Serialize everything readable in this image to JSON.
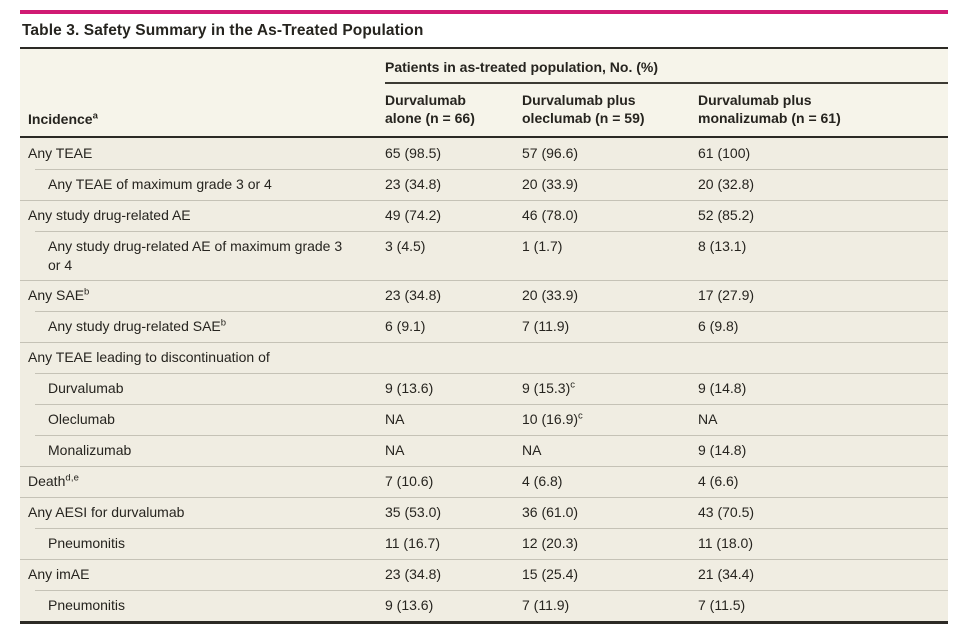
{
  "table": {
    "title": "Table 3. Safety Summary in the As-Treated Population",
    "spanner": "Patients in as-treated population, No. (%)",
    "row_header": {
      "label": "Incidence",
      "superscript": "a"
    },
    "columns": [
      {
        "line1": "Durvalumab",
        "line2": "alone (n = 66)"
      },
      {
        "line1": "Durvalumab plus",
        "line2": "oleclumab (n = 59)"
      },
      {
        "line1": "Durvalumab plus",
        "line2": "monalizumab (n = 61)"
      }
    ],
    "rows": [
      {
        "indent": false,
        "label": {
          "text": "Any TEAE",
          "sup": ""
        },
        "values": [
          {
            "text": "65 (98.5)",
            "sup": ""
          },
          {
            "text": "57 (96.6)",
            "sup": ""
          },
          {
            "text": "61 (100)",
            "sup": ""
          }
        ]
      },
      {
        "indent": true,
        "label": {
          "text": "Any TEAE of maximum grade 3 or 4",
          "sup": ""
        },
        "values": [
          {
            "text": "23 (34.8)",
            "sup": ""
          },
          {
            "text": "20 (33.9)",
            "sup": ""
          },
          {
            "text": "20 (32.8)",
            "sup": ""
          }
        ]
      },
      {
        "indent": false,
        "label": {
          "text": "Any study drug-related AE",
          "sup": ""
        },
        "values": [
          {
            "text": "49 (74.2)",
            "sup": ""
          },
          {
            "text": "46 (78.0)",
            "sup": ""
          },
          {
            "text": "52 (85.2)",
            "sup": ""
          }
        ]
      },
      {
        "indent": true,
        "label": {
          "text": "Any study drug-related AE of maximum grade 3 or 4",
          "sup": ""
        },
        "values": [
          {
            "text": "3 (4.5)",
            "sup": ""
          },
          {
            "text": "1 (1.7)",
            "sup": ""
          },
          {
            "text": "8 (13.1)",
            "sup": ""
          }
        ]
      },
      {
        "indent": false,
        "label": {
          "text": "Any SAE",
          "sup": "b"
        },
        "values": [
          {
            "text": "23 (34.8)",
            "sup": ""
          },
          {
            "text": "20 (33.9)",
            "sup": ""
          },
          {
            "text": "17 (27.9)",
            "sup": ""
          }
        ]
      },
      {
        "indent": true,
        "label": {
          "text": "Any study drug-related SAE",
          "sup": "b"
        },
        "values": [
          {
            "text": "6 (9.1)",
            "sup": ""
          },
          {
            "text": "7 (11.9)",
            "sup": ""
          },
          {
            "text": "6 (9.8)",
            "sup": ""
          }
        ]
      },
      {
        "indent": false,
        "label": {
          "text": "Any TEAE leading to discontinuation of",
          "sup": ""
        },
        "values": [
          {
            "text": "",
            "sup": ""
          },
          {
            "text": "",
            "sup": ""
          },
          {
            "text": "",
            "sup": ""
          }
        ]
      },
      {
        "indent": true,
        "label": {
          "text": "Durvalumab",
          "sup": ""
        },
        "values": [
          {
            "text": "9 (13.6)",
            "sup": ""
          },
          {
            "text": "9 (15.3)",
            "sup": "c"
          },
          {
            "text": "9 (14.8)",
            "sup": ""
          }
        ]
      },
      {
        "indent": true,
        "label": {
          "text": "Oleclumab",
          "sup": ""
        },
        "values": [
          {
            "text": "NA",
            "sup": ""
          },
          {
            "text": "10 (16.9)",
            "sup": "c"
          },
          {
            "text": "NA",
            "sup": ""
          }
        ]
      },
      {
        "indent": true,
        "label": {
          "text": "Monalizumab",
          "sup": ""
        },
        "values": [
          {
            "text": "NA",
            "sup": ""
          },
          {
            "text": "NA",
            "sup": ""
          },
          {
            "text": "9 (14.8)",
            "sup": ""
          }
        ]
      },
      {
        "indent": false,
        "label": {
          "text": "Death",
          "sup": "d,e"
        },
        "values": [
          {
            "text": "7 (10.6)",
            "sup": ""
          },
          {
            "text": "4 (6.8)",
            "sup": ""
          },
          {
            "text": "4 (6.6)",
            "sup": ""
          }
        ]
      },
      {
        "indent": false,
        "label": {
          "text": "Any AESI for durvalumab",
          "sup": ""
        },
        "values": [
          {
            "text": "35 (53.0)",
            "sup": ""
          },
          {
            "text": "36 (61.0)",
            "sup": ""
          },
          {
            "text": "43 (70.5)",
            "sup": ""
          }
        ]
      },
      {
        "indent": true,
        "label": {
          "text": "Pneumonitis",
          "sup": ""
        },
        "values": [
          {
            "text": "11 (16.7)",
            "sup": ""
          },
          {
            "text": "12 (20.3)",
            "sup": ""
          },
          {
            "text": "11 (18.0)",
            "sup": ""
          }
        ]
      },
      {
        "indent": false,
        "label": {
          "text": "Any imAE",
          "sup": ""
        },
        "values": [
          {
            "text": "23 (34.8)",
            "sup": ""
          },
          {
            "text": "15 (25.4)",
            "sup": ""
          },
          {
            "text": "21 (34.4)",
            "sup": ""
          }
        ]
      },
      {
        "indent": true,
        "label": {
          "text": "Pneumonitis",
          "sup": ""
        },
        "values": [
          {
            "text": "9 (13.6)",
            "sup": ""
          },
          {
            "text": "7 (11.9)",
            "sup": ""
          },
          {
            "text": "7 (11.5)",
            "sup": ""
          }
        ]
      }
    ]
  },
  "colors": {
    "accent_magenta": "#d01a73",
    "header_band": "#f6f4ea",
    "body_band": "#f0ede2",
    "dark_rule": "#2c2a25",
    "row_divider": "#c5c2b6",
    "text": "#26241f"
  }
}
